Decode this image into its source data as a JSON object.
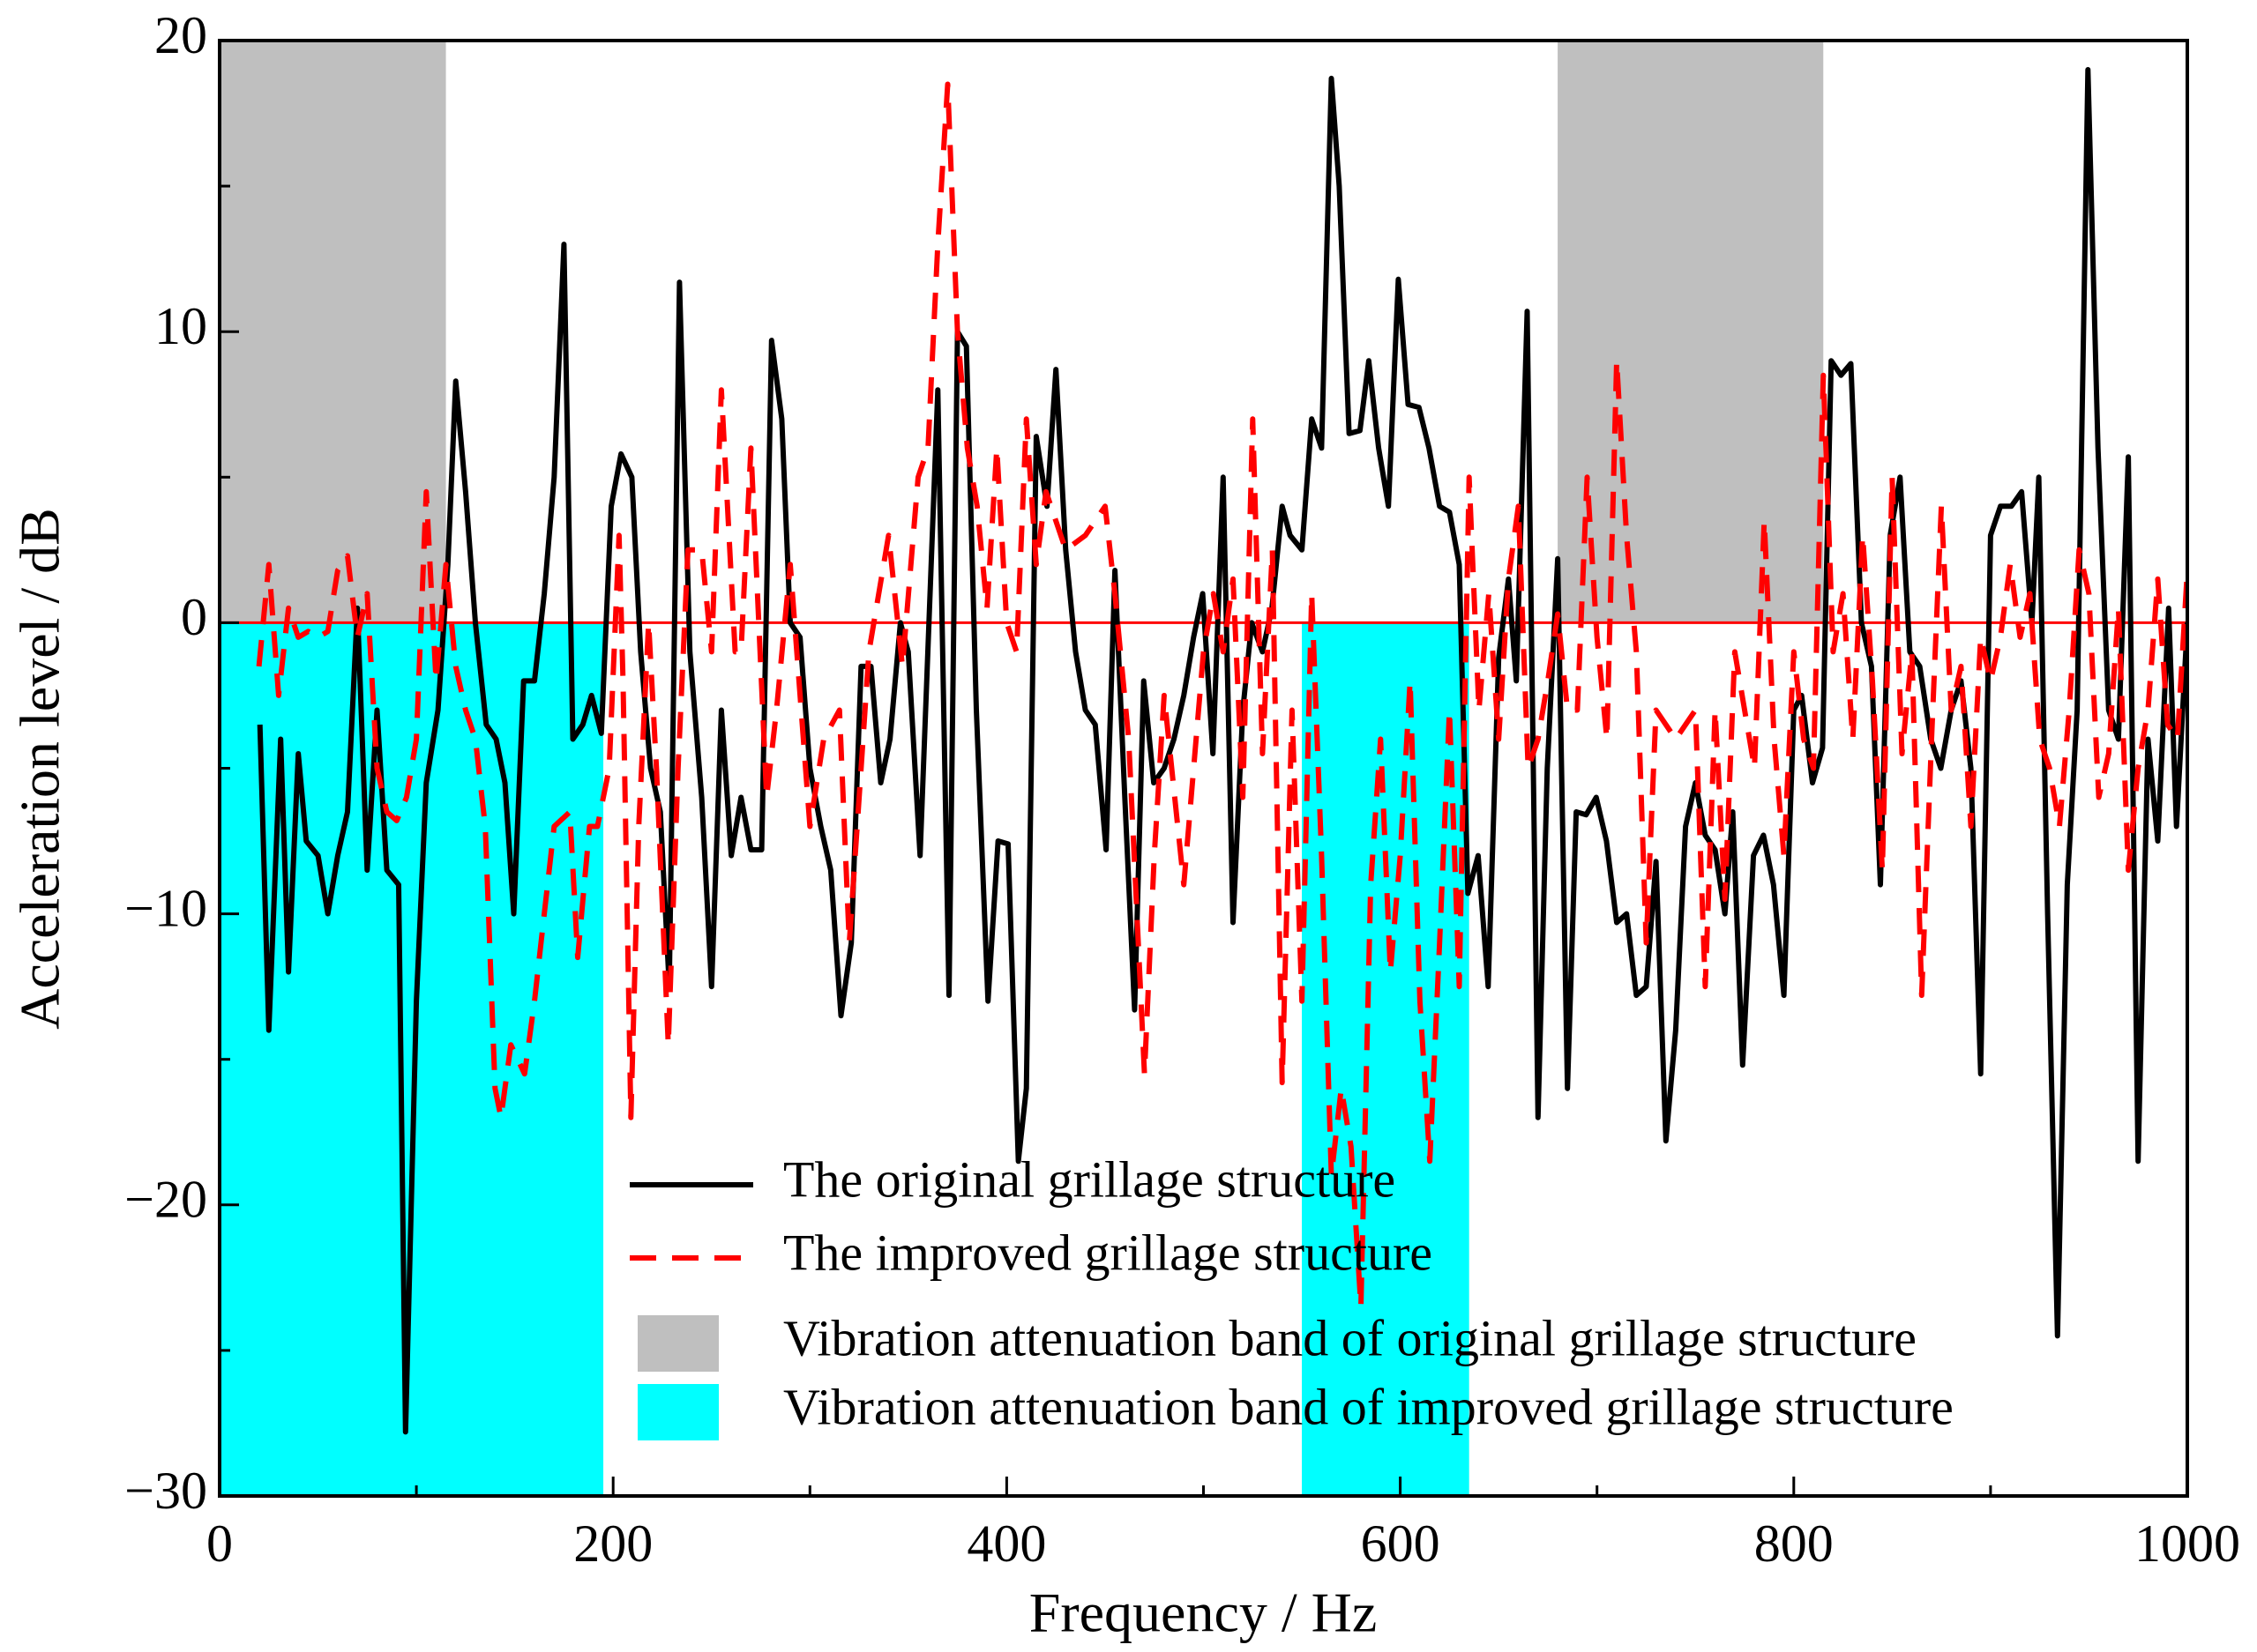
{
  "chart_data": {
    "type": "line",
    "xlabel": "Frequency / Hz",
    "ylabel": "Acceleration level / dB",
    "xlim": [
      0,
      1000
    ],
    "ylim": [
      -30,
      20
    ],
    "xticks": [
      0,
      200,
      400,
      600,
      800,
      1000
    ],
    "xminor_ticks": [
      100,
      300,
      500,
      700,
      900
    ],
    "yticks": [
      {
        "value": -30,
        "label": "−30"
      },
      {
        "value": -20,
        "label": "−20"
      },
      {
        "value": -10,
        "label": "−10"
      },
      0,
      10,
      20
    ],
    "yminor_ticks": [
      -25,
      -15,
      -5,
      5,
      15
    ],
    "reference_line": {
      "y": 0,
      "color": "#ff0000"
    },
    "bands": [
      {
        "name": "Vibration attenuation band of original grillage structure",
        "color": "#bfbfbf",
        "ranges": [
          [
            0,
            115
          ],
          [
            680,
            815
          ]
        ],
        "yrange": [
          0,
          20
        ]
      },
      {
        "name": "Vibration attenuation band of improved grillage structure",
        "color": "#00ffff",
        "ranges": [
          [
            0,
            195
          ],
          [
            550,
            635
          ]
        ],
        "yrange": [
          -30,
          0
        ]
      }
    ],
    "series": [
      {
        "name": "The original grillage structure",
        "color": "#000000",
        "dash": false,
        "x": [
          20.5,
          25,
          31,
          35,
          40,
          44,
          50,
          55,
          60,
          65,
          70,
          75,
          80,
          85,
          91,
          94.5,
          100,
          105,
          111,
          116,
          120,
          125,
          130,
          135.5,
          140.5,
          145,
          149.5,
          154.5,
          160,
          165,
          170,
          175,
          179.5,
          184.6,
          189,
          194,
          199,
          204,
          209.5,
          214,
          219,
          224,
          228.5,
          233.7,
          239,
          245,
          250,
          255,
          260,
          265,
          270,
          275.5,
          280.5,
          285.7,
          290,
          295,
          300,
          305.5,
          310.6,
          315.8,
          321,
          326,
          331,
          336,
          340.7,
          346,
          350,
          356,
          365,
          370.7,
          375,
          379.5,
          384.6,
          390.5,
          395.6,
          400.7,
          405.9,
          410,
          415,
          420.5,
          425,
          430,
          435,
          440,
          445,
          450.5,
          455,
          460,
          465,
          469.6,
          474.7,
          480,
          485,
          490,
          495,
          499.6,
          504.8,
          510,
          515,
          520,
          524.5,
          530,
          534.8,
          540,
          544,
          550,
          555,
          560,
          565,
          569,
          574,
          579.5,
          584,
          589,
          594,
          599,
          604,
          609.5,
          614.6,
          620,
          625,
          630,
          634.4,
          639.6,
          644.7,
          650,
          655,
          659,
          664.5,
          670,
          674.7,
          680,
          685,
          689.4,
          694.5,
          699.6,
          704.8,
          710,
          715,
          720,
          725,
          730,
          735,
          740,
          745,
          750,
          755,
          760,
          765,
          769,
          774,
          779.5,
          784.6,
          789.7,
          795,
          800,
          804,
          809.5,
          814.6,
          819,
          824,
          829,
          834.4,
          839.5,
          844,
          849,
          854,
          859,
          864,
          869.6,
          874.7,
          880,
          885,
          890,
          895,
          900,
          905,
          910.6,
          915.8,
          921,
          924.5,
          929,
          934,
          939,
          944,
          949.5,
          954.6,
          960,
          965,
          970,
          975,
          980,
          985,
          990.5,
          994.5,
          1000
        ],
        "values": [
          -3.5,
          -14,
          -4,
          -12,
          -4.5,
          -7.5,
          -8,
          -10,
          -8,
          -6.5,
          0.5,
          -8.5,
          -3,
          -8.5,
          -9,
          -27.8,
          -13,
          -5.5,
          -3,
          2,
          8.3,
          4.5,
          0,
          -3.5,
          -4,
          -5.5,
          -10,
          -2,
          -2,
          1,
          5,
          13,
          -4,
          -3.5,
          -2.5,
          -3.8,
          4,
          5.8,
          5,
          -1,
          -5,
          -6.5,
          -12.5,
          11.7,
          -1,
          -6,
          -12.5,
          -3,
          -8,
          -6,
          -7.8,
          -7.8,
          9.7,
          7,
          0,
          -0.5,
          -5,
          -7,
          -8.5,
          -13.5,
          -11,
          -1.5,
          -1.5,
          -5.5,
          -4,
          0,
          -1,
          -8,
          8,
          -12.8,
          10,
          9.5,
          -3,
          -13,
          -7.5,
          -7.6,
          -18.5,
          -16,
          6.4,
          4,
          8.7,
          2.5,
          -1,
          -3,
          -3.5,
          -7.8,
          1.8,
          -6,
          -13.3,
          -2,
          -5.5,
          -5,
          -4,
          -2.5,
          -0.5,
          1,
          -4.5,
          5,
          -10.3,
          -3,
          0,
          -1,
          0.5,
          4,
          3,
          2.5,
          7,
          6,
          18.7,
          15,
          6.5,
          6.6,
          9,
          6,
          4,
          11.8,
          7.5,
          7.4,
          6,
          4,
          3.8,
          2,
          -9.3,
          -8,
          -12.5,
          -1.2,
          1.5,
          -2,
          10.7,
          -17,
          -5,
          2.2,
          -16,
          -6.5,
          -6.6,
          -6,
          -7.5,
          -10.3,
          -10,
          -12.8,
          -12.5,
          -8.2,
          -17.8,
          -14,
          -7,
          -5.5,
          -7.3,
          -7.8,
          -10,
          -6.5,
          -15.2,
          -8,
          -7.3,
          -9,
          -12.8,
          -3,
          -2.5,
          -5.5,
          -4.3,
          9,
          8.5,
          8.9,
          0,
          -1.5,
          -9,
          3,
          5,
          -1,
          -1.5,
          -4,
          -5,
          -3,
          -2,
          -5,
          -15.5,
          3,
          4,
          4,
          4.5,
          0,
          5,
          -10,
          -24.5,
          -9,
          -3,
          19,
          6,
          -3,
          -4,
          5.7,
          -18.5,
          -4,
          -7.5,
          0.5,
          -7,
          0
        ]
      },
      {
        "name": "The improved grillage structure",
        "color": "#ff0000",
        "dash": true,
        "x": [
          20,
          25,
          30,
          35,
          40,
          45,
          50,
          55,
          60,
          65,
          70,
          75,
          80,
          85,
          90,
          95,
          100,
          105,
          110,
          115,
          120,
          125,
          130,
          135,
          140,
          143,
          148,
          155,
          160,
          165,
          170,
          178,
          182,
          188,
          192,
          198,
          203,
          205,
          209,
          213,
          218,
          222,
          228,
          233,
          238,
          245,
          250,
          255,
          262,
          265,
          270,
          278,
          283,
          290,
          300,
          307,
          315,
          320,
          325,
          330,
          340,
          347,
          355,
          360,
          365,
          370,
          375,
          380,
          385,
          390,
          395,
          400,
          405,
          410,
          415,
          420,
          430,
          440,
          450,
          455,
          462,
          470,
          475,
          480,
          490,
          500,
          505,
          510,
          515,
          520,
          525,
          530,
          535,
          540,
          545,
          550,
          555,
          560,
          565,
          570,
          575,
          580,
          585,
          590,
          595,
          600,
          605,
          610,
          615,
          620,
          625,
          630,
          635,
          640,
          645,
          650,
          655,
          660,
          665,
          670,
          675,
          680,
          685,
          690,
          695,
          700,
          705,
          710,
          715,
          720,
          725,
          730,
          740,
          750,
          755,
          760,
          765,
          770,
          780,
          785,
          790,
          795,
          800,
          805,
          810,
          815,
          820,
          825,
          830,
          835,
          840,
          845,
          850,
          855,
          860,
          865,
          870,
          875,
          880,
          885,
          890,
          895,
          900,
          905,
          910,
          915,
          920,
          925,
          930,
          935,
          940,
          945,
          950,
          955,
          960,
          965,
          970,
          975,
          980,
          985,
          990,
          995,
          1000
        ],
        "values": [
          -1.5,
          2,
          -2.5,
          0.5,
          -0.5,
          -0.3,
          -0.5,
          -0.3,
          1.8,
          2.3,
          -0.5,
          1,
          -5,
          -6.5,
          -6.8,
          -6,
          -4,
          4.5,
          -2,
          2,
          -1.5,
          -3,
          -4,
          -7,
          -16,
          -17,
          -14.5,
          -15.5,
          -13,
          -10,
          -7,
          -6.5,
          -11.5,
          -7,
          -7,
          -5,
          3,
          -2,
          -17,
          -7,
          0,
          -5,
          -14.5,
          -5,
          2.5,
          2.5,
          -1,
          8,
          -1,
          -1,
          6,
          -6,
          -3,
          2,
          -7,
          -4,
          -3,
          -11,
          -6,
          -1,
          3,
          -1.5,
          5,
          6,
          13,
          18.5,
          10,
          6,
          4,
          0.5,
          6,
          0,
          -1,
          7,
          2,
          4.5,
          2.5,
          3,
          4,
          1,
          -4,
          -15.5,
          -8,
          -2.5,
          -9,
          -1,
          1,
          -1,
          1.5,
          -6,
          7,
          -4.5,
          2.5,
          -15.8,
          -3,
          -13,
          1,
          -8,
          -19,
          -16,
          -18,
          -23.5,
          -9,
          -4,
          -12,
          -8,
          -2,
          -13,
          -18.5,
          -11,
          -3,
          -12.5,
          5,
          -3,
          1,
          -4,
          1.5,
          4,
          -5,
          -4,
          -2,
          0.3,
          -3,
          -3,
          5,
          -0.5,
          -4,
          9,
          3,
          -1,
          -11,
          -3,
          -4,
          -3,
          -12.5,
          -3,
          -9.5,
          -1,
          -5,
          3.5,
          -4,
          -8,
          -1,
          -4,
          -5,
          8.5,
          -1,
          1,
          -4,
          3,
          -2,
          -8.5,
          5,
          -4.5,
          -1,
          -12.8,
          -4,
          4,
          -3,
          -1.5,
          -7,
          -0.5,
          -2,
          -0.5,
          2,
          -0.5,
          1,
          -4,
          -5,
          -7,
          -3,
          2.5,
          1,
          -6,
          -4.5,
          0.5,
          -8.5,
          -5,
          -3,
          1.5,
          -3.5,
          -4,
          1.8
        ]
      }
    ]
  }
}
